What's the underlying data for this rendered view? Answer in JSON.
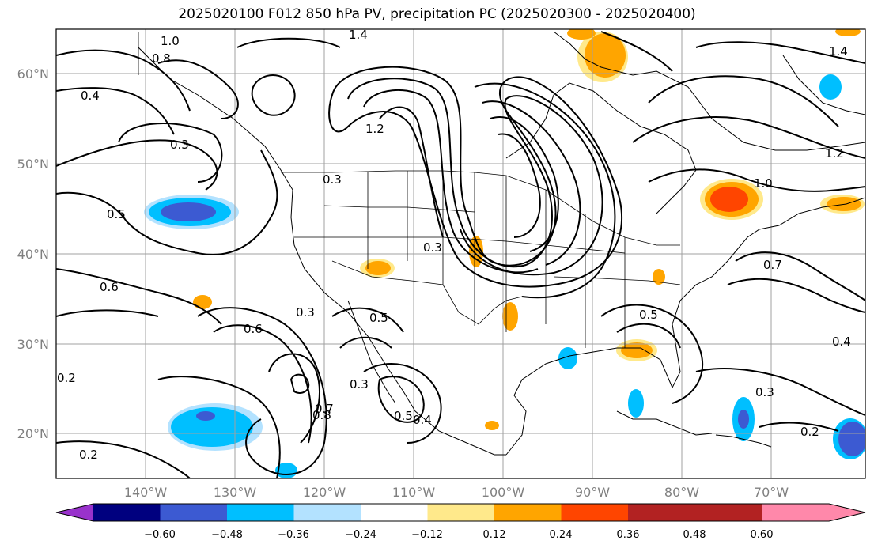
{
  "title": "2025020100 F012 850 hPa PV, precipitation PC (2025020300 - 2025020400)",
  "latitude_labels": [
    "60°N",
    "50°N",
    "40°N",
    "30°N",
    "20°N"
  ],
  "longitude_labels": [
    "140°W",
    "130°W",
    "120°W",
    "110°W",
    "100°W",
    "90°W",
    "80°W",
    "70°W"
  ],
  "colorbar": {
    "tick_labels": [
      "−0.60",
      "−0.48",
      "−0.36",
      "−0.24",
      "−0.12",
      "0.12",
      "0.24",
      "0.36",
      "0.48",
      "0.60"
    ],
    "colors": [
      "#9932cc",
      "#00007f",
      "#3c5ad2",
      "#00bfff",
      "#b3e2ff",
      "#ffffff",
      "#ffe98b",
      "#ffa500",
      "#ff4500",
      "#b22222",
      "#ff88aa"
    ]
  },
  "contour_labels": [
    "1.0",
    "1.4",
    "0.8",
    "0.4",
    "0.3",
    "0.5",
    "0.6",
    "0.2",
    "1.2",
    "0.3",
    "0.7",
    "0.6",
    "0.3",
    "0.5",
    "0.8",
    "0.5",
    "0.4",
    "0.3",
    "0.2",
    "0.5",
    "1.4",
    "1.2",
    "1.0",
    "0.7",
    "0.3",
    "0.2",
    "0.4",
    "0.3"
  ]
}
